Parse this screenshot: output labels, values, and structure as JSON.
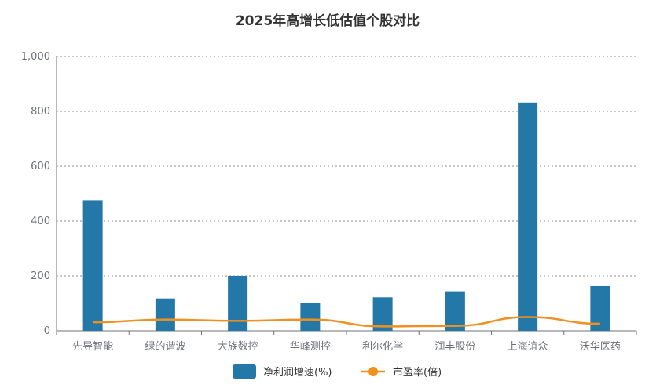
{
  "chart_data": {
    "type": "bar",
    "title": "2025年高增长低估值个股对比",
    "categories": [
      "先导智能",
      "绿的谐波",
      "大族数控",
      "华峰测控",
      "利尔化学",
      "润丰股份",
      "上海谊众",
      "沃华医药"
    ],
    "series": [
      {
        "name": "净利润增速(%)",
        "type": "bar",
        "color": "#2378a8",
        "values": [
          476,
          118,
          200,
          100,
          122,
          144,
          832,
          163
        ]
      },
      {
        "name": "市盈率(倍)",
        "type": "line",
        "color": "#f0901e",
        "values": [
          31,
          41,
          36,
          41,
          16,
          18,
          50,
          26
        ]
      }
    ],
    "ylim": [
      0,
      1000
    ],
    "yticks": [
      "0",
      "200",
      "400",
      "600",
      "800",
      "1,000"
    ],
    "grid": true,
    "legend_position": "bottom"
  }
}
